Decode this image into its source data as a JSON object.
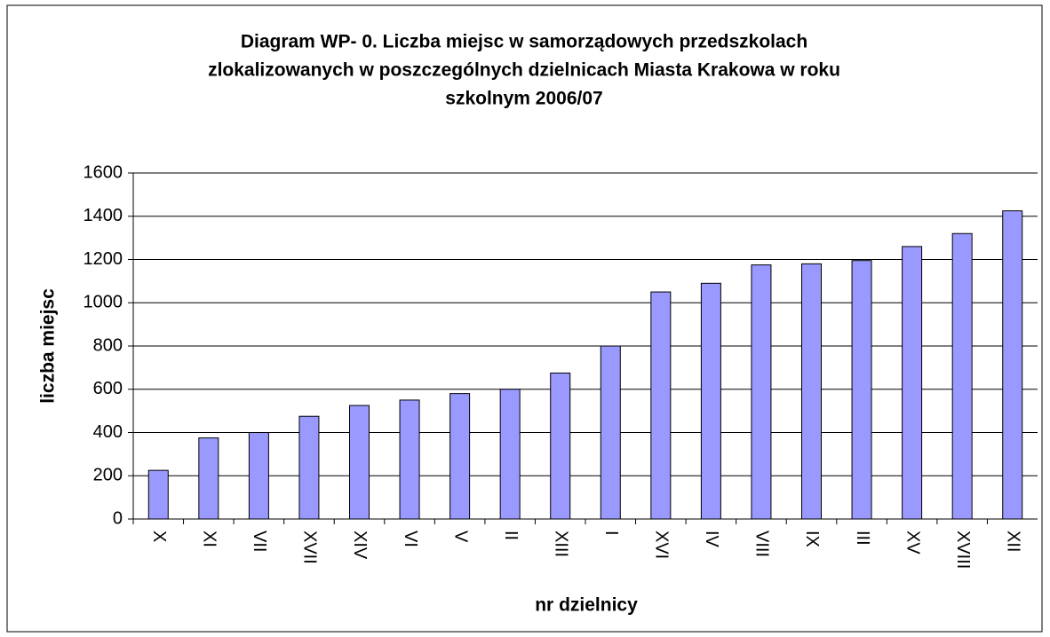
{
  "chart_data": {
    "type": "bar",
    "title": [
      "Diagram WP- 0. Liczba miejsc w samorządowych przedszkolach",
      "zlokalizowanych w poszczególnych dzielnicach Miasta Krakowa w roku",
      "szkolnym 2006/07"
    ],
    "x_label": "nr dzielnicy",
    "y_label": "liczba miejsc",
    "categories": [
      "X",
      "XI",
      "VII",
      "XVII",
      "XIV",
      "VI",
      "V",
      "II",
      "XIII",
      "I",
      "XVI",
      "IV",
      "VIII",
      "IX",
      "III",
      "XV",
      "XVIII",
      "XII"
    ],
    "values": [
      225,
      375,
      400,
      475,
      525,
      550,
      580,
      600,
      675,
      800,
      1050,
      1090,
      1175,
      1180,
      1195,
      1260,
      1320,
      1425
    ],
    "color": "#9999ff",
    "ylim": [
      0,
      1600
    ],
    "yticks": [
      0,
      200,
      400,
      600,
      800,
      1000,
      1200,
      1400,
      1600
    ],
    "grid": true
  }
}
